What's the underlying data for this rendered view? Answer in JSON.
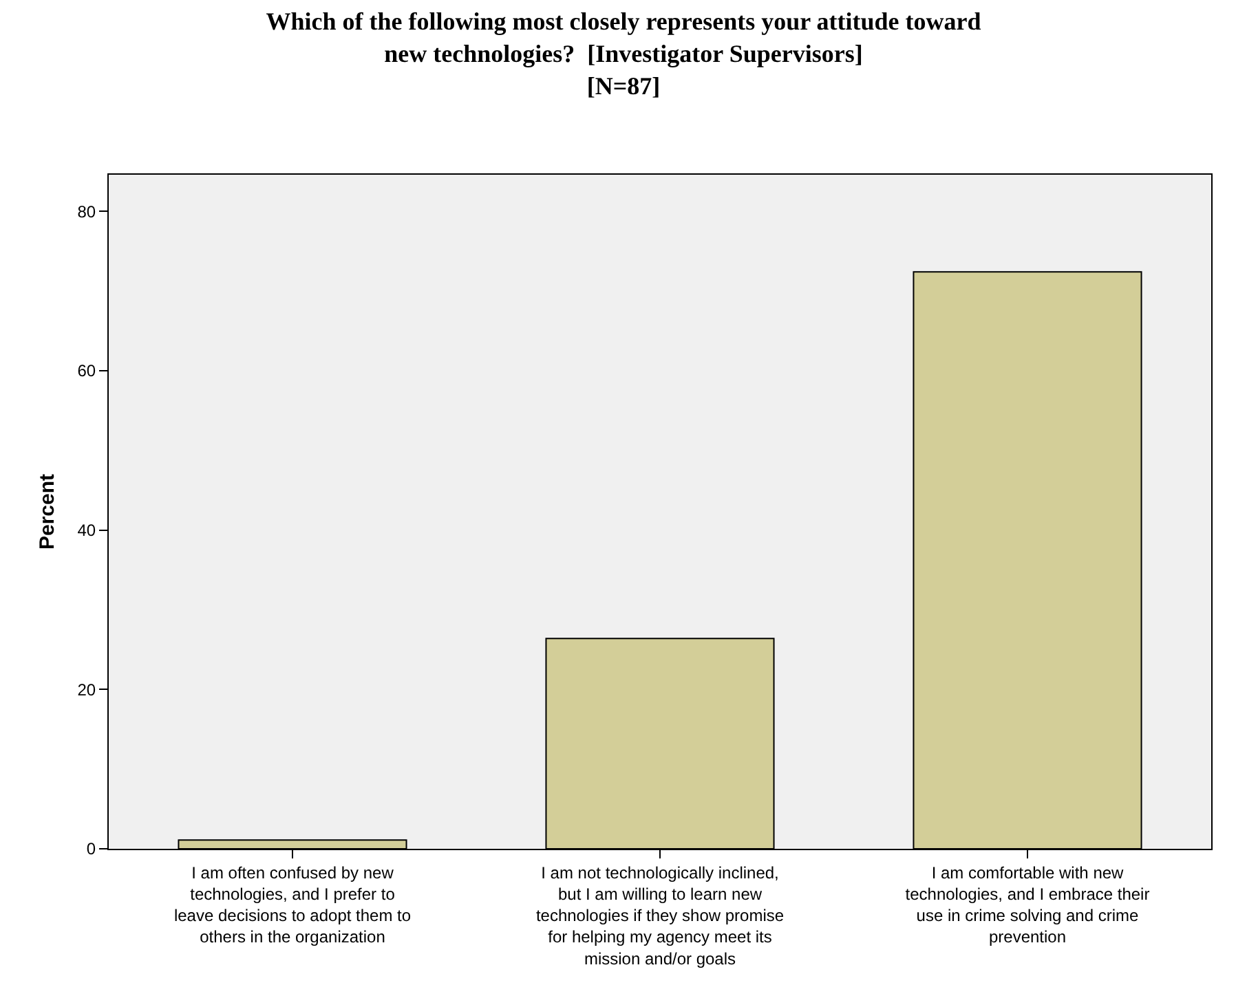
{
  "chart_data": {
    "type": "bar",
    "title": "Which of the following most closely represents your attitude toward\nnew technologies?  [Investigator Supervisors]\n[N=87]",
    "ylabel": "Percent",
    "categories": [
      "I am often confused by new technologies, and I prefer to leave decisions to adopt them to others in the organization",
      "I am not technologically inclined, but I am willing to learn new technologies if they show promise for helping my agency meet its mission and/or goals",
      "I am comfortable with new technologies, and I embrace their use in crime solving and crime prevention"
    ],
    "values": [
      1.1,
      26.4,
      72.4
    ],
    "color": "#d3ce98",
    "ylim": [
      0,
      84.6
    ],
    "yticks": [
      0,
      20,
      40,
      60,
      80
    ],
    "grid": false
  }
}
